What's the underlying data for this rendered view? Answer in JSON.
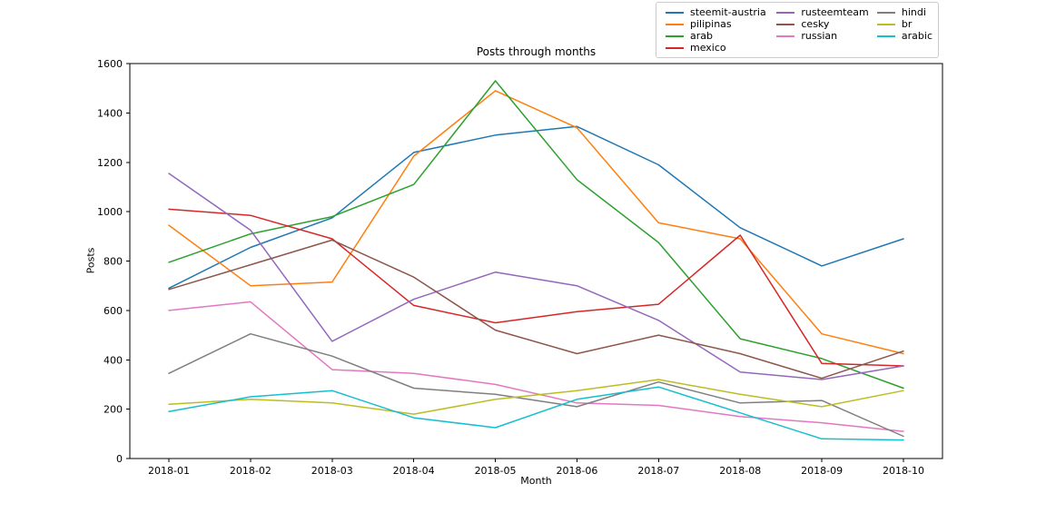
{
  "figure": {
    "background": "#ffffff",
    "text_color": "#000000",
    "spine_color": "#000000"
  },
  "chart_data": {
    "type": "line",
    "title": "Posts through months",
    "xlabel": "Month",
    "ylabel": "Posts",
    "categories": [
      "2018-01",
      "2018-02",
      "2018-03",
      "2018-04",
      "2018-05",
      "2018-06",
      "2018-07",
      "2018-08",
      "2018-09",
      "2018-10"
    ],
    "ylim": [
      0,
      1600
    ],
    "ytick_step": 200,
    "grid": false,
    "legend_position": "top-right-above-axes",
    "series": [
      {
        "name": "steemit-austria",
        "color": "#1f77b4",
        "values": [
          690,
          855,
          975,
          1240,
          1310,
          1345,
          1190,
          935,
          780,
          890
        ]
      },
      {
        "name": "pilipinas",
        "color": "#ff7f0e",
        "values": [
          945,
          700,
          715,
          1225,
          1490,
          1340,
          955,
          890,
          505,
          425
        ]
      },
      {
        "name": "arab",
        "color": "#2ca02c",
        "values": [
          795,
          910,
          980,
          1110,
          1530,
          1130,
          875,
          485,
          405,
          285
        ]
      },
      {
        "name": "mexico",
        "color": "#d62728",
        "values": [
          1010,
          985,
          890,
          620,
          550,
          595,
          625,
          905,
          385,
          375
        ]
      },
      {
        "name": "rusteemteam",
        "color": "#9467bd",
        "values": [
          1155,
          925,
          475,
          645,
          755,
          700,
          560,
          350,
          320,
          375
        ]
      },
      {
        "name": "cesky",
        "color": "#8c564b",
        "values": [
          685,
          785,
          885,
          735,
          520,
          425,
          500,
          425,
          325,
          435
        ]
      },
      {
        "name": "russian",
        "color": "#e377c2",
        "values": [
          600,
          635,
          360,
          345,
          300,
          225,
          215,
          170,
          145,
          110
        ]
      },
      {
        "name": "hindi",
        "color": "#7f7f7f",
        "values": [
          345,
          505,
          415,
          285,
          260,
          210,
          310,
          225,
          235,
          90
        ]
      },
      {
        "name": "br",
        "color": "#bcbd22",
        "values": [
          220,
          240,
          225,
          180,
          240,
          275,
          320,
          260,
          210,
          275
        ]
      },
      {
        "name": "arabic",
        "color": "#17becf",
        "values": [
          190,
          250,
          275,
          165,
          125,
          240,
          290,
          185,
          80,
          75
        ]
      }
    ]
  }
}
